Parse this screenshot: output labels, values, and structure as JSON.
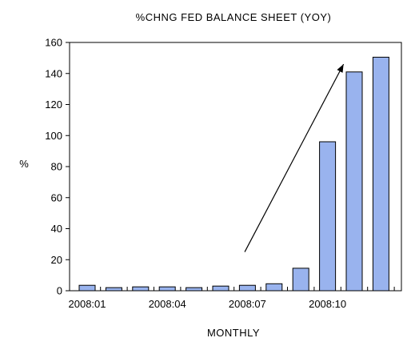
{
  "chart_data": {
    "type": "bar",
    "title": "%CHNG FED BALANCE SHEET (YOY)",
    "xlabel": "MONTHLY",
    "ylabel": "%",
    "categories": [
      "2008:01",
      "2008:02",
      "2008:03",
      "2008:04",
      "2008:05",
      "2008:06",
      "2008:07",
      "2008:08",
      "2008:09",
      "2008:10",
      "2008:11",
      "2008:12"
    ],
    "x_tick_labels": [
      {
        "category": "2008:01",
        "label": "2008:01"
      },
      {
        "category": "2008:04",
        "label": "2008:04"
      },
      {
        "category": "2008:07",
        "label": "2008:07"
      },
      {
        "category": "2008:10",
        "label": "2008:10"
      }
    ],
    "values": [
      3.5,
      2,
      2.5,
      2.5,
      2,
      3,
      3.5,
      4.5,
      14.5,
      96,
      141,
      150.5
    ],
    "ylim": [
      0,
      160
    ],
    "yticks": [
      0,
      20,
      40,
      60,
      80,
      100,
      120,
      140,
      160
    ],
    "grid": false,
    "legend": "none",
    "bar_color": "#99b3ee",
    "bar_edge_color": "#000000",
    "annotation": {
      "type": "arrow",
      "from": {
        "x": "2008:06.9",
        "y": 25
      },
      "to": {
        "x": "2008:10.6",
        "y": 146
      }
    }
  }
}
